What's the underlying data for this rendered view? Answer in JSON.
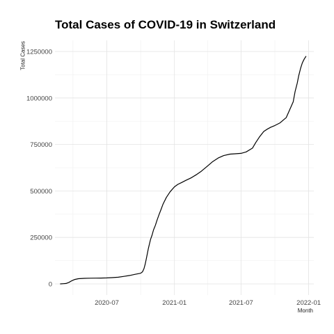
{
  "chart_data": {
    "type": "line",
    "title": "Total Cases of COVID-19 in Switzerland",
    "xlabel": "Month",
    "ylabel": "Total Cases",
    "x_ticks": [
      "2020-07",
      "2021-01",
      "2021-07",
      "2022-01"
    ],
    "y_ticks": [
      "0",
      "250000",
      "500000",
      "750000",
      "1000000",
      "1250000"
    ],
    "xlim": [
      "2020-02-11",
      "2022-01-15"
    ],
    "ylim": [
      -60000,
      1310000
    ],
    "grid": true,
    "legend": "none",
    "series": [
      {
        "x": [
          "2020-02-25",
          "2020-03-05",
          "2020-03-12",
          "2020-03-20",
          "2020-03-28",
          "2020-04-05",
          "2020-04-15",
          "2020-05-01",
          "2020-05-15",
          "2020-06-01",
          "2020-06-15",
          "2020-07-01",
          "2020-07-15",
          "2020-08-01",
          "2020-08-15",
          "2020-09-01",
          "2020-09-15",
          "2020-10-01",
          "2020-10-06",
          "2020-10-10",
          "2020-10-13",
          "2020-10-16",
          "2020-10-19",
          "2020-10-22",
          "2020-10-25",
          "2020-10-28",
          "2020-11-01",
          "2020-11-05",
          "2020-11-10",
          "2020-11-15",
          "2020-11-20",
          "2020-11-25",
          "2020-12-01",
          "2020-12-10",
          "2020-12-20",
          "2021-01-01",
          "2021-01-10",
          "2021-01-20",
          "2021-02-01",
          "2021-02-15",
          "2021-03-01",
          "2021-03-15",
          "2021-04-01",
          "2021-04-15",
          "2021-05-01",
          "2021-05-15",
          "2021-06-01",
          "2021-06-15",
          "2021-07-01",
          "2021-07-15",
          "2021-08-01",
          "2021-08-10",
          "2021-08-20",
          "2021-09-01",
          "2021-09-10",
          "2021-09-20",
          "2021-10-01",
          "2021-10-15",
          "2021-11-01",
          "2021-11-10",
          "2021-11-20",
          "2021-11-25",
          "2021-12-01",
          "2021-12-05",
          "2021-12-10",
          "2021-12-15",
          "2021-12-20",
          "2021-12-25"
        ],
        "y": [
          0,
          1000,
          2000,
          8000,
          17000,
          24000,
          28000,
          30000,
          30500,
          31000,
          31500,
          32000,
          33500,
          36000,
          40000,
          45000,
          51000,
          57000,
          65000,
          82000,
          104000,
          130000,
          160000,
          190000,
          215000,
          240000,
          262000,
          290000,
          315000,
          345000,
          372000,
          398000,
          430000,
          465000,
          495000,
          522000,
          535000,
          545000,
          557000,
          570000,
          587000,
          606000,
          634000,
          658000,
          678000,
          690000,
          698000,
          700000,
          702000,
          710000,
          730000,
          760000,
          790000,
          820000,
          832000,
          843000,
          852000,
          866000,
          895000,
          935000,
          980000,
          1035000,
          1080000,
          1120000,
          1160000,
          1190000,
          1210000,
          1225000
        ]
      }
    ]
  }
}
